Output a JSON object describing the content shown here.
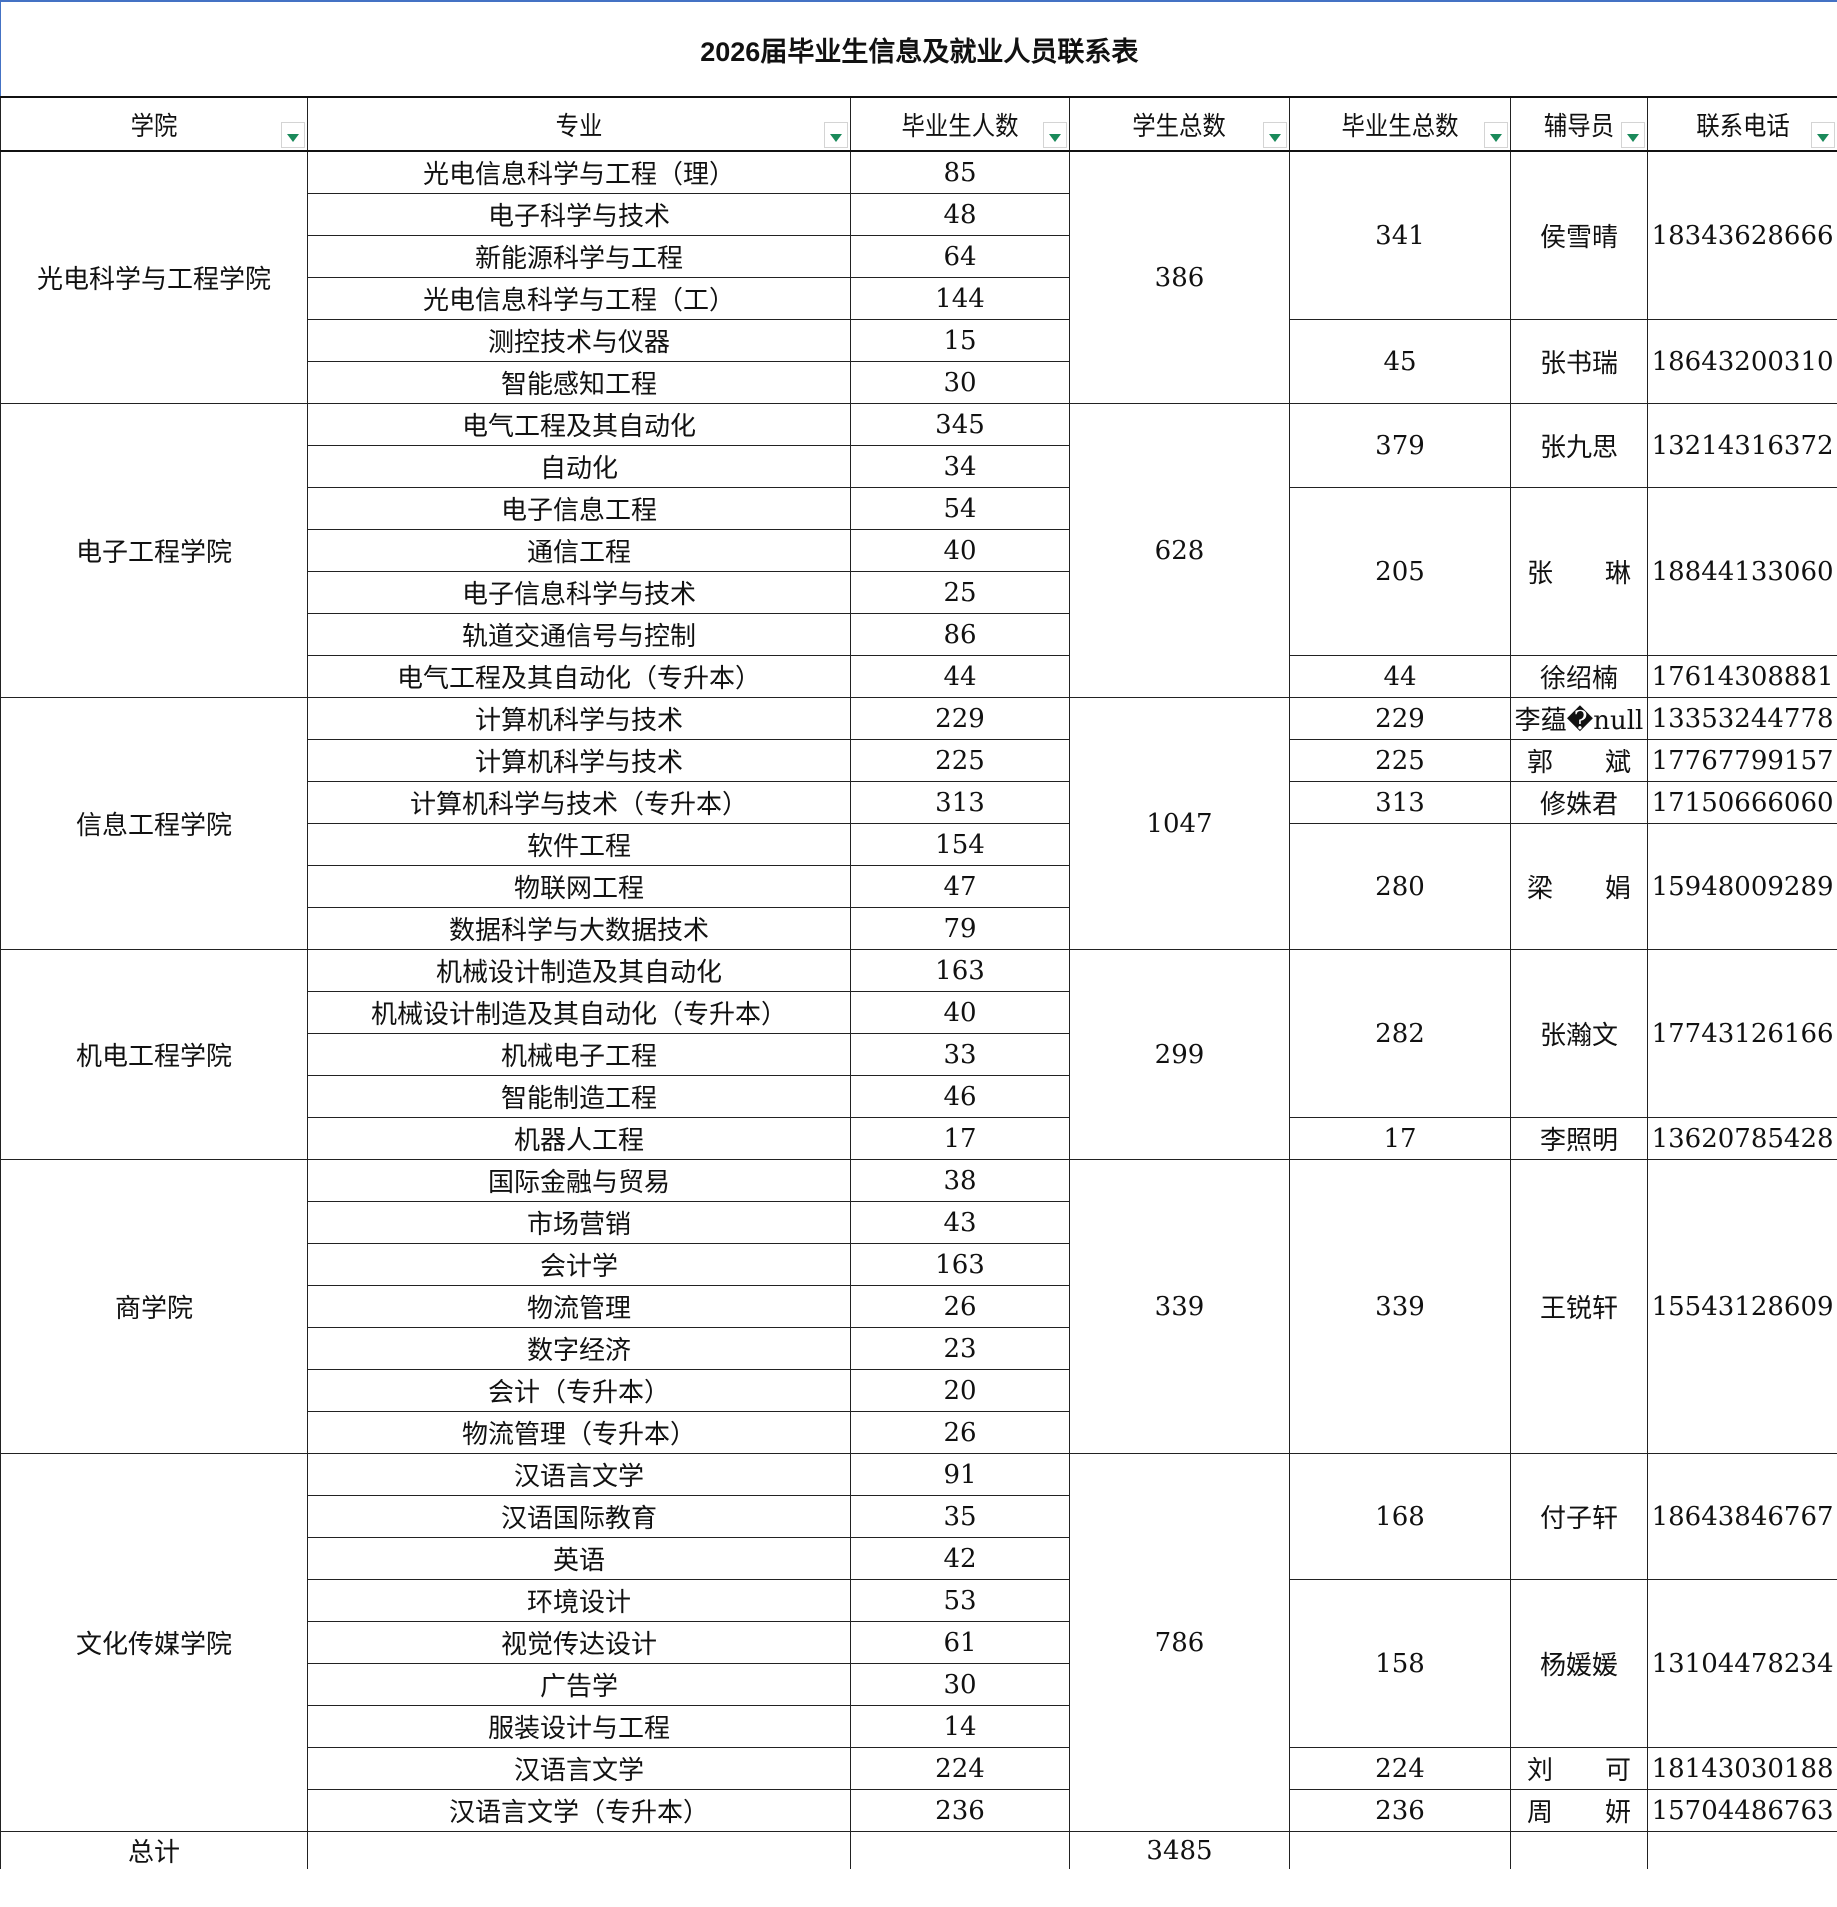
{
  "title": "2026届毕业生信息及就业人员联系表",
  "headers": [
    "学院",
    "专业",
    "毕业生人数",
    "学生总数",
    "毕业生总数",
    "辅导员",
    "联系电话"
  ],
  "colors": {
    "title_border": "#4472c4",
    "filter_arrow": "#1a8a5a"
  },
  "icons": {
    "filter": "filter-dropdown-icon"
  },
  "colleges": [
    {
      "name": "光电科学与工程学院",
      "student_total": "386",
      "majors": [
        {
          "name": "光电信息科学与工程（理）",
          "count": "85"
        },
        {
          "name": "电子科学与技术",
          "count": "48"
        },
        {
          "name": "新能源科学与工程",
          "count": "64"
        },
        {
          "name": "光电信息科学与工程（工）",
          "count": "144"
        },
        {
          "name": "测控技术与仪器",
          "count": "15"
        },
        {
          "name": "智能感知工程",
          "count": "30"
        }
      ],
      "groups": [
        {
          "span": 4,
          "total": "341",
          "counselor": "侯雪晴",
          "phone": "18343628666"
        },
        {
          "span": 2,
          "total": "45",
          "counselor": "张书瑞",
          "phone": "18643200310"
        }
      ]
    },
    {
      "name": "电子工程学院",
      "student_total": "628",
      "majors": [
        {
          "name": "电气工程及其自动化",
          "count": "345"
        },
        {
          "name": "自动化",
          "count": "34"
        },
        {
          "name": "电子信息工程",
          "count": "54"
        },
        {
          "name": "通信工程",
          "count": "40"
        },
        {
          "name": "电子信息科学与技术",
          "count": "25"
        },
        {
          "name": "轨道交通信号与控制",
          "count": "86"
        },
        {
          "name": "电气工程及其自动化（专升本）",
          "count": "44"
        }
      ],
      "groups": [
        {
          "span": 2,
          "total": "379",
          "counselor": "张九思",
          "phone": "13214316372"
        },
        {
          "span": 4,
          "total": "205",
          "counselor": "张　　琳",
          "phone": "18844133060"
        },
        {
          "span": 1,
          "total": "44",
          "counselor": "徐绍楠",
          "phone": "17614308881"
        }
      ]
    },
    {
      "name": "信息工程学院",
      "student_total": "1047",
      "majors": [
        {
          "name": "计算机科学与技术",
          "count": "229"
        },
        {
          "name": "计算机科学与技术",
          "count": "225"
        },
        {
          "name": "计算机科学与技术（专升本）",
          "count": "313"
        },
        {
          "name": "软件工程",
          "count": "154"
        },
        {
          "name": "物联网工程",
          "count": "47"
        },
        {
          "name": "数据科学与大数据技术",
          "count": "79"
        }
      ],
      "groups": [
        {
          "span": 1,
          "total": "229",
          "counselor": "李蕴�null",
          "phone": "13353244778"
        },
        {
          "span": 1,
          "total": "225",
          "counselor": "郭　　斌",
          "phone": "17767799157"
        },
        {
          "span": 1,
          "total": "313",
          "counselor": "修姝君",
          "phone": "17150666060"
        },
        {
          "span": 3,
          "total": "280",
          "counselor": "梁　　娟",
          "phone": "15948009289"
        }
      ]
    },
    {
      "name": "机电工程学院",
      "student_total": "299",
      "majors": [
        {
          "name": "机械设计制造及其自动化",
          "count": "163"
        },
        {
          "name": "机械设计制造及其自动化（专升本）",
          "count": "40"
        },
        {
          "name": "机械电子工程",
          "count": "33"
        },
        {
          "name": "智能制造工程",
          "count": "46"
        },
        {
          "name": "机器人工程",
          "count": "17"
        }
      ],
      "groups": [
        {
          "span": 4,
          "total": "282",
          "counselor": "张瀚文",
          "phone": "17743126166"
        },
        {
          "span": 1,
          "total": "17",
          "counselor": "李照明",
          "phone": "13620785428"
        }
      ]
    },
    {
      "name": "商学院",
      "student_total": "339",
      "majors": [
        {
          "name": "国际金融与贸易",
          "count": "38"
        },
        {
          "name": "市场营销",
          "count": "43"
        },
        {
          "name": "会计学",
          "count": "163"
        },
        {
          "name": "物流管理",
          "count": "26"
        },
        {
          "name": "数字经济",
          "count": "23"
        },
        {
          "name": "会计（专升本）",
          "count": "20"
        },
        {
          "name": "物流管理（专升本）",
          "count": "26"
        }
      ],
      "groups": [
        {
          "span": 7,
          "total": "339",
          "counselor": "王锐轩",
          "phone": "15543128609"
        }
      ]
    },
    {
      "name": "文化传媒学院",
      "student_total": "786",
      "majors": [
        {
          "name": "汉语言文学",
          "count": "91"
        },
        {
          "name": "汉语国际教育",
          "count": "35"
        },
        {
          "name": "英语",
          "count": "42"
        },
        {
          "name": "环境设计",
          "count": "53"
        },
        {
          "name": "视觉传达设计",
          "count": "61"
        },
        {
          "name": "广告学",
          "count": "30"
        },
        {
          "name": "服装设计与工程",
          "count": "14"
        },
        {
          "name": "汉语言文学",
          "count": "224"
        },
        {
          "name": "汉语言文学（专升本）",
          "count": "236"
        }
      ],
      "groups": [
        {
          "span": 3,
          "total": "168",
          "counselor": "付子轩",
          "phone": "18643846767"
        },
        {
          "span": 4,
          "total": "158",
          "counselor": "杨媛媛",
          "phone": "13104478234"
        },
        {
          "span": 1,
          "total": "224",
          "counselor": "刘　　可",
          "phone": "18143030188"
        },
        {
          "span": 1,
          "total": "236",
          "counselor": "周　　妍",
          "phone": "15704486763"
        }
      ]
    }
  ],
  "total": {
    "label": "总计",
    "student_total": "3485"
  }
}
